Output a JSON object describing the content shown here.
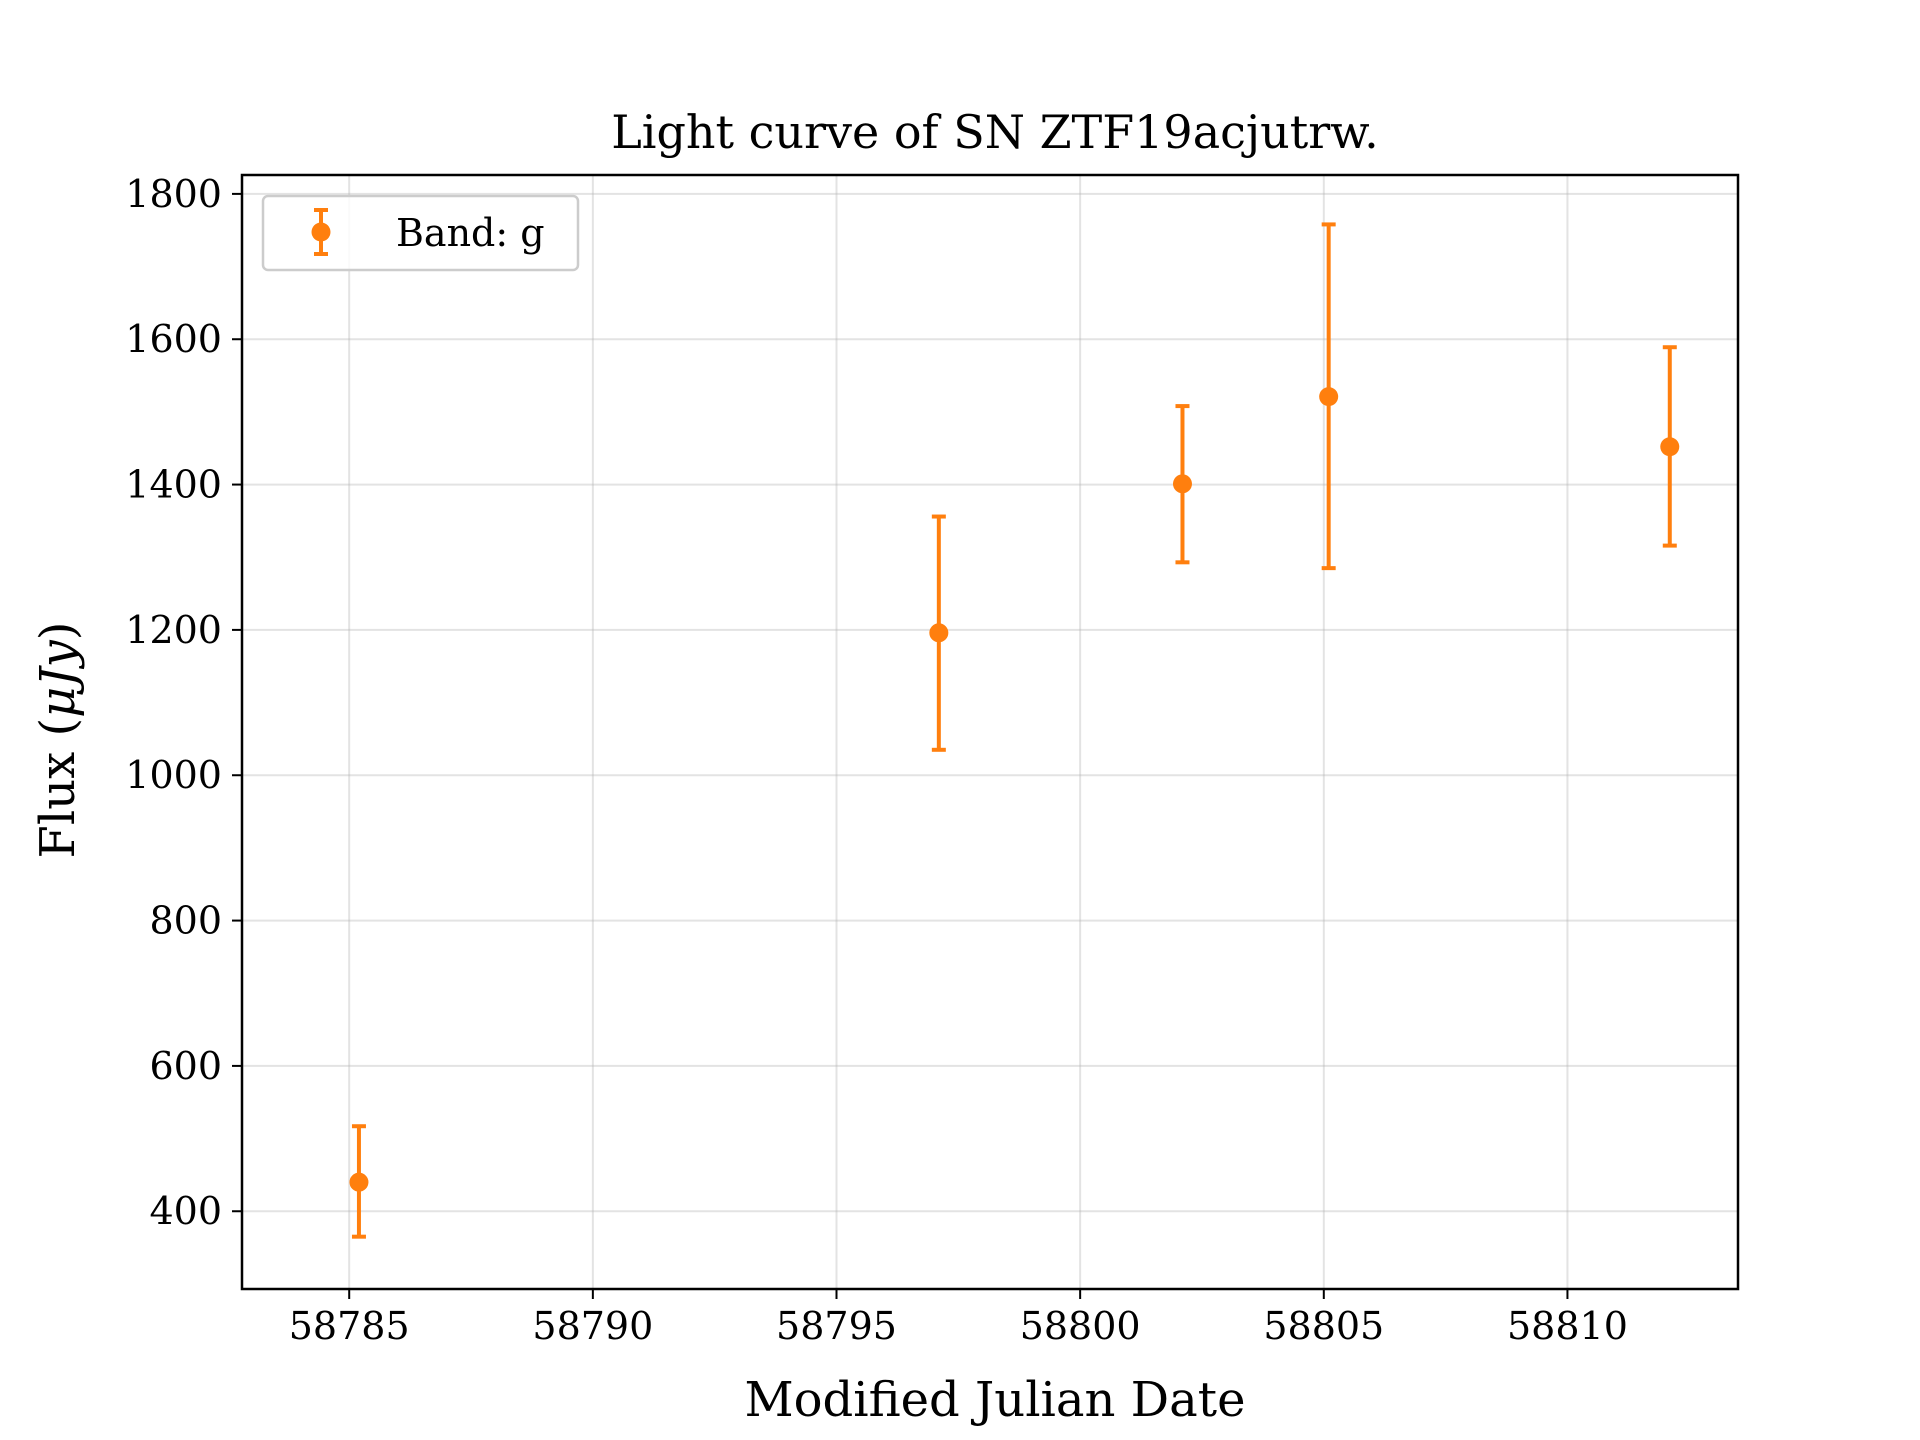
{
  "chart_data": {
    "type": "scatter",
    "title": "Light curve of SN ZTF19acjutrw.",
    "xlabel": "Modified Julian Date",
    "ylabel_prefix": "Flux (",
    "ylabel_unit": "μJy",
    "ylabel_suffix": ")",
    "xlim": [
      58782.8,
      58813.5
    ],
    "ylim": [
      293,
      1826
    ],
    "xticks": [
      58785,
      58790,
      58795,
      58800,
      58805,
      58810
    ],
    "yticks": [
      400,
      600,
      800,
      1000,
      1200,
      1400,
      1600,
      1800
    ],
    "grid": true,
    "legend_position": "top-left",
    "series": [
      {
        "name": "Band: g",
        "color": "#ff7f0e",
        "points": [
          {
            "x": 58785.2,
            "y": 440,
            "err_low": 365,
            "err_high": 517
          },
          {
            "x": 58797.1,
            "y": 1196,
            "err_low": 1035,
            "err_high": 1356
          },
          {
            "x": 58802.1,
            "y": 1401,
            "err_low": 1293,
            "err_high": 1508
          },
          {
            "x": 58805.1,
            "y": 1521,
            "err_low": 1285,
            "err_high": 1758
          },
          {
            "x": 58812.1,
            "y": 1452,
            "err_low": 1316,
            "err_high": 1589
          }
        ]
      }
    ]
  }
}
